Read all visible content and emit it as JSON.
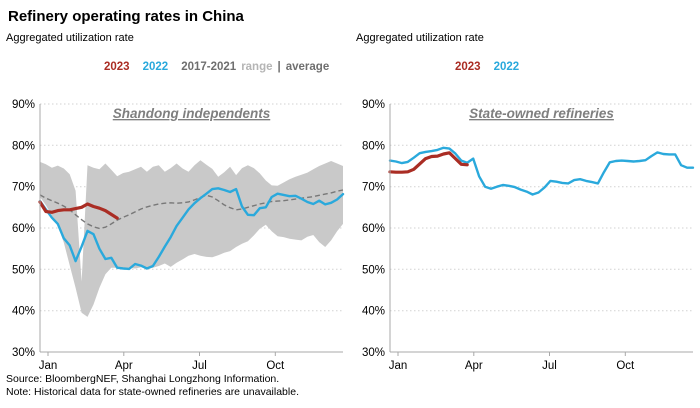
{
  "header": {
    "title": "Refinery operating rates in China"
  },
  "panels": [
    {
      "subtitle": "Aggregated utilization rate"
    },
    {
      "subtitle": "Aggregated utilization rate"
    }
  ],
  "legend": {
    "y2023": "2023",
    "y2022": "2022",
    "range_years": "2017-2021",
    "range_word": "range",
    "sep": "|",
    "avg_word": "average"
  },
  "footer": {
    "source": "Source: BloombergNEF, Shanghai Longzhong Information.",
    "note": "Note: Historical data for state-owned refineries are unavailable."
  },
  "colors": {
    "red_2023": "#aa2d24",
    "cyan_2022": "#2aa9dc",
    "band": "#c9c9c9",
    "average": "#787878",
    "grid": "#d2d2d2",
    "axis": "#a8a8a8",
    "panel_title": "#7f7f7f",
    "legend_gray": "#6f6f6f",
    "legend_light": "#b5b5b5",
    "text": "#000000"
  },
  "chart_data": [
    {
      "type": "line",
      "title": "Shandong independents",
      "ylabel": "Aggregated utilization rate",
      "ylim": [
        30,
        90
      ],
      "grid": true,
      "x_unit": "weekly, Jan-Dec",
      "y_ticks": [
        "90%",
        "80%",
        "70%",
        "60%",
        "50%",
        "40%",
        "30%"
      ],
      "x_ticks": [
        "Jan",
        "Apr",
        "Jul",
        "Oct"
      ],
      "series": [
        {
          "name": "2017-2021 range max",
          "role": "range_top",
          "values": [
            76,
            75.4,
            74.6,
            75.1,
            74.4,
            73,
            69,
            47,
            75.2,
            74.6,
            74.2,
            75.6,
            74.1,
            72.5,
            73.3,
            73.6,
            74.2,
            74.8,
            73.6,
            74.8,
            75.2,
            73.6,
            74.5,
            75.6,
            74.4,
            73.6,
            75.2,
            76.4,
            75.3,
            74.3,
            72.4,
            73.5,
            74.8,
            72.8,
            74.5,
            75.2,
            74.5,
            73.2,
            71.5,
            70.3,
            70.2,
            71,
            71.8,
            72.4,
            72.9,
            73.4,
            74.2,
            75,
            75.6,
            76.2,
            75.6,
            75
          ]
        },
        {
          "name": "2017-2021 range min",
          "role": "range_bottom",
          "values": [
            67.5,
            65.5,
            63,
            60.5,
            56.5,
            51,
            45.5,
            39.5,
            38.5,
            41.5,
            45.5,
            48.8,
            50.4,
            50.4,
            50.2,
            50.4,
            50.2,
            50.5,
            50,
            50.4,
            50.8,
            51.4,
            50.6,
            51.6,
            52.4,
            53.3,
            53.7,
            53.3,
            53,
            52.9,
            53.4,
            54,
            54.4,
            55.4,
            56.2,
            56.8,
            58.2,
            59.8,
            60.8,
            59.2,
            58,
            57.8,
            57.4,
            57.2,
            57,
            57.9,
            58.3,
            56.6,
            55.4,
            57,
            59.2,
            61
          ]
        },
        {
          "name": "2017-2021 average",
          "role": "average",
          "values": [
            68,
            67.2,
            66.6,
            66,
            65.3,
            64.4,
            63.2,
            62,
            61,
            60.3,
            59.9,
            60.2,
            61,
            61.9,
            62.6,
            63.2,
            63.9,
            64.6,
            65.1,
            65.5,
            65.8,
            66,
            66.1,
            66,
            66.1,
            66.3,
            66.8,
            67.4,
            67.9,
            67.5,
            66.6,
            65.6,
            64.9,
            64.4,
            64.6,
            65,
            65.4,
            65.8,
            66.1,
            66.4,
            66.5,
            66.6,
            66.8,
            67,
            67.2,
            67.4,
            67.6,
            67.9,
            68.2,
            68.5,
            68.9,
            69.2
          ]
        },
        {
          "name": "2022",
          "role": "line2022",
          "values": [
            66.5,
            64.5,
            62.5,
            61,
            57.5,
            55.8,
            52,
            55.5,
            59.3,
            58.5,
            55,
            52.5,
            52.8,
            50.4,
            50.2,
            50.1,
            51.3,
            50.9,
            50.2,
            50.8,
            53,
            55.5,
            57.8,
            60.5,
            62.5,
            64.5,
            66,
            67.2,
            68.3,
            69.4,
            69.6,
            69.2,
            68.7,
            69.4,
            65.2,
            63.2,
            63.1,
            64.8,
            65,
            67.5,
            68.3,
            68,
            67.7,
            67.8,
            67.1,
            66.3,
            65.8,
            66.6,
            65.7,
            66.1,
            66.9,
            68.2
          ]
        },
        {
          "name": "2023",
          "role": "line2023",
          "values": [
            66.3,
            64,
            63.8,
            64.2,
            64.4,
            64.4,
            64.7,
            65,
            65.8,
            65.2,
            64.8,
            64.2,
            63.3,
            62.4
          ]
        }
      ]
    },
    {
      "type": "line",
      "title": "State-owned refineries",
      "ylabel": "Aggregated utilization rate",
      "ylim": [
        30,
        90
      ],
      "grid": true,
      "x_unit": "weekly, Jan-Dec",
      "y_ticks": [
        "90%",
        "80%",
        "70%",
        "60%",
        "50%",
        "40%",
        "30%"
      ],
      "x_ticks": [
        "Jan",
        "Apr",
        "Jul",
        "Oct"
      ],
      "series": [
        {
          "name": "2022",
          "role": "line2022",
          "values": [
            76.3,
            76.1,
            75.7,
            76,
            77,
            78.1,
            78.4,
            78.6,
            78.9,
            79.4,
            79.2,
            78,
            76.3,
            75.8,
            76.8,
            72.5,
            70,
            69.5,
            70,
            70.4,
            70.2,
            69.9,
            69.3,
            68.8,
            68.1,
            68.6,
            69.8,
            71.4,
            71.2,
            70.9,
            70.8,
            71.6,
            71.8,
            71.4,
            71.1,
            70.8,
            73.5,
            75.9,
            76.2,
            76.3,
            76.2,
            76.1,
            76.2,
            76.4,
            77.4,
            78.3,
            77.9,
            77.8,
            77.8,
            75.2,
            74.6,
            74.6
          ]
        },
        {
          "name": "2023",
          "role": "line2023",
          "values": [
            73.6,
            73.5,
            73.5,
            73.6,
            74.2,
            75.5,
            76.8,
            77.3,
            77.4,
            77.9,
            78.2,
            76.8,
            75.4,
            75.3
          ]
        }
      ]
    }
  ]
}
